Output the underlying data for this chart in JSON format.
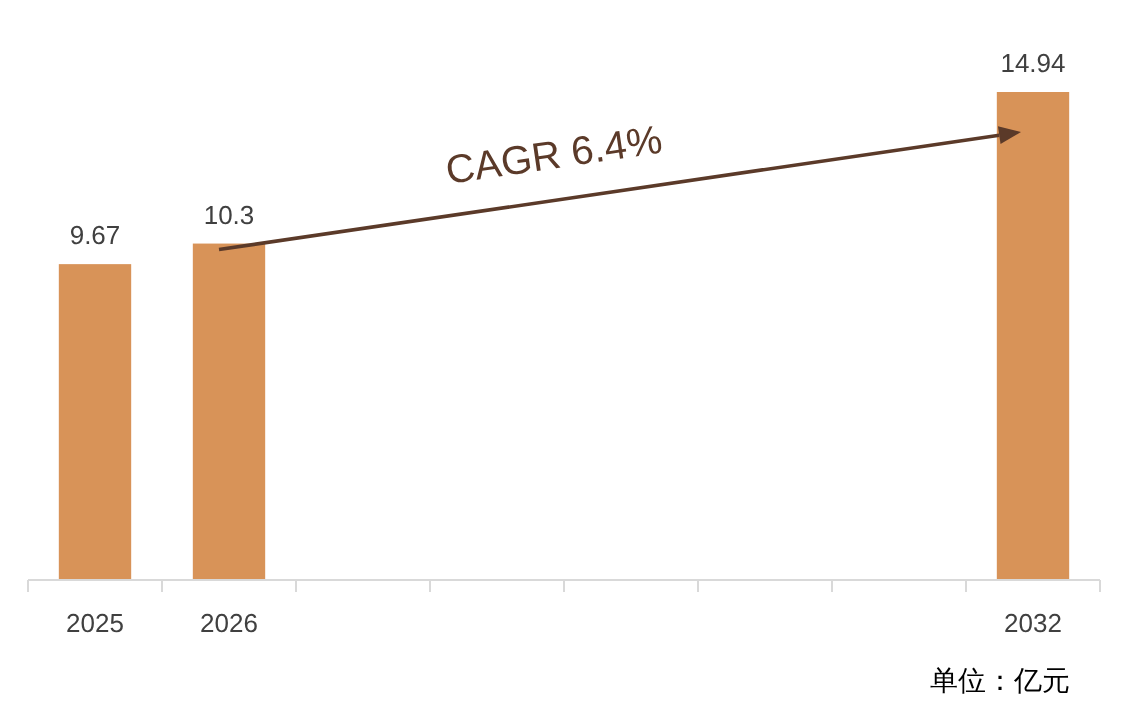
{
  "chart_data": {
    "type": "bar",
    "categories": [
      "2025",
      "2026",
      null,
      null,
      null,
      null,
      null,
      "2032"
    ],
    "values": [
      9.67,
      10.3,
      null,
      null,
      null,
      null,
      null,
      14.94
    ],
    "color": "#d89358",
    "data_labels": true,
    "annotations": [
      "CAGR 6.4%",
      "单位：亿元"
    ]
  }
}
